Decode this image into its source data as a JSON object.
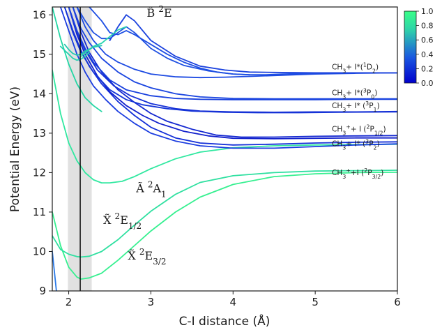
{
  "chart_data": {
    "type": "line",
    "title": "",
    "xlabel": "C-I distance (Å)",
    "ylabel": "Potential Energy (eV)",
    "xlim": [
      1.8,
      6.0
    ],
    "ylim": [
      9.0,
      16.2
    ],
    "xticks": [
      2,
      3,
      4,
      5,
      6
    ],
    "yticks": [
      9,
      10,
      11,
      12,
      13,
      14,
      15,
      16
    ],
    "grid": false,
    "colormap": {
      "range": [
        0.0,
        1.0
      ],
      "ticks": [
        "0.0",
        "0.2",
        "0.4",
        "0.6",
        "0.8",
        "1.0"
      ],
      "colors": [
        "#0000cc",
        "#1a56e0",
        "#2fd4a8",
        "#39ff88"
      ],
      "placement": "top-right"
    },
    "shaded_band": {
      "x": [
        1.99,
        2.28
      ],
      "color": "#e1e1e1"
    },
    "vertical_line": {
      "x": 2.14,
      "color": "#000000"
    },
    "asymptote_labels": [
      {
        "y": 14.53,
        "parts": [
          [
            "CH",
            ""
          ],
          [
            "3",
            "sub"
          ],
          [
            "+ I*(",
            ""
          ],
          [
            "1",
            "sup"
          ],
          [
            "D",
            ""
          ],
          [
            "2",
            "sub"
          ],
          [
            ")",
            ""
          ]
        ]
      },
      {
        "y": 13.87,
        "parts": [
          [
            "CH",
            ""
          ],
          [
            "3",
            "sub"
          ],
          [
            "+ I*(",
            ""
          ],
          [
            "3",
            "sup"
          ],
          [
            "P",
            ""
          ],
          [
            "0",
            "sub"
          ],
          [
            ")",
            ""
          ]
        ]
      },
      {
        "y": 13.55,
        "parts": [
          [
            "CH",
            ""
          ],
          [
            "3",
            "sub"
          ],
          [
            "+ I* (",
            ""
          ],
          [
            "3",
            "sup"
          ],
          [
            "P",
            ""
          ],
          [
            "1",
            "sub"
          ],
          [
            ")",
            ""
          ]
        ]
      },
      {
        "y": 12.95,
        "parts": [
          [
            "CH",
            ""
          ],
          [
            "3",
            "sub"
          ],
          [
            "+",
            "sup"
          ],
          [
            "+ I (",
            ""
          ],
          [
            "2",
            "sup"
          ],
          [
            "P",
            ""
          ],
          [
            "1/2",
            "sub"
          ],
          [
            ")",
            ""
          ]
        ]
      },
      {
        "y": 12.58,
        "parts": [
          [
            "CH",
            ""
          ],
          [
            "3",
            "sub"
          ],
          [
            "+ I* (",
            ""
          ],
          [
            "3",
            "sup"
          ],
          [
            "P",
            ""
          ],
          [
            "2",
            "sub"
          ],
          [
            ")",
            ""
          ]
        ]
      },
      {
        "y": 11.85,
        "parts": [
          [
            "CH",
            ""
          ],
          [
            "3",
            "sub"
          ],
          [
            "+",
            "sup"
          ],
          [
            "+I (",
            ""
          ],
          [
            "2",
            "sup"
          ],
          [
            "P",
            ""
          ],
          [
            "3/2",
            "sub"
          ],
          [
            ")",
            ""
          ]
        ]
      }
    ],
    "state_labels": [
      {
        "x": 2.95,
        "y": 15.95,
        "parts": [
          [
            "B̃ ",
            ""
          ],
          [
            "2",
            "sup"
          ],
          [
            "E",
            ""
          ]
        ]
      },
      {
        "x": 2.82,
        "y": 11.5,
        "parts": [
          [
            "Ã ",
            ""
          ],
          [
            "2",
            "sup"
          ],
          [
            "A",
            ""
          ],
          [
            "1",
            "sub"
          ]
        ]
      },
      {
        "x": 2.42,
        "y": 10.7,
        "parts": [
          [
            "X̃ ",
            ""
          ],
          [
            "2",
            "sup"
          ],
          [
            "E",
            ""
          ],
          [
            "1/2",
            "sub"
          ]
        ]
      },
      {
        "x": 2.72,
        "y": 9.8,
        "parts": [
          [
            "X̃ ",
            ""
          ],
          [
            "2",
            "sup"
          ],
          [
            "E",
            ""
          ],
          [
            "3/2",
            "sub"
          ]
        ]
      }
    ],
    "series": [
      {
        "color": "#36f090",
        "x": [
          1.8,
          1.9,
          2.0,
          2.1,
          2.15,
          2.25,
          2.4,
          2.6,
          2.8,
          3.0,
          3.3,
          3.6,
          4.0,
          4.5,
          5.0,
          5.5,
          6.0
        ],
        "y": [
          11.0,
          10.15,
          9.6,
          9.35,
          9.3,
          9.33,
          9.45,
          9.78,
          10.15,
          10.52,
          11.0,
          11.38,
          11.7,
          11.9,
          11.97,
          12.0,
          12.01
        ]
      },
      {
        "color": "#2ee0a0",
        "x": [
          1.8,
          1.9,
          2.0,
          2.1,
          2.15,
          2.25,
          2.4,
          2.6,
          2.8,
          3.0,
          3.3,
          3.6,
          4.0,
          4.5,
          5.0,
          5.5,
          6.0
        ],
        "y": [
          10.4,
          10.05,
          9.93,
          9.87,
          9.86,
          9.88,
          10.0,
          10.3,
          10.67,
          11.02,
          11.45,
          11.75,
          11.92,
          12.0,
          12.04,
          12.05,
          12.06
        ]
      },
      {
        "color": "#30e8a0",
        "x": [
          1.8,
          1.9,
          2.0,
          2.1,
          2.2,
          2.3,
          2.4,
          2.5,
          2.65,
          2.8,
          3.0,
          3.3,
          3.6,
          4.0,
          4.5,
          5.0,
          5.5,
          6.0
        ],
        "y": [
          14.6,
          13.5,
          12.75,
          12.3,
          12.0,
          11.82,
          11.74,
          11.74,
          11.78,
          11.9,
          12.1,
          12.35,
          12.52,
          12.63,
          12.68,
          12.7,
          12.71,
          12.72
        ]
      },
      {
        "color": "#22d6a4",
        "x": [
          1.8,
          1.9,
          2.0,
          2.1,
          2.2,
          2.3,
          2.4
        ],
        "y": [
          16.2,
          15.4,
          14.75,
          14.25,
          13.9,
          13.7,
          13.55
        ]
      },
      {
        "color": "#2a7ae8",
        "x": [
          1.8,
          1.85
        ],
        "y": [
          10.0,
          9.0
        ]
      },
      {
        "color": "#1a3ce0",
        "x": [
          1.9,
          2.0,
          2.1,
          2.2,
          2.3,
          2.45,
          2.6,
          2.8,
          3.0,
          3.3,
          3.6,
          4.0,
          4.5,
          5.0,
          5.5,
          6.0
        ],
        "y": [
          16.2,
          15.6,
          15.0,
          14.55,
          14.2,
          13.85,
          13.55,
          13.25,
          13.0,
          12.8,
          12.68,
          12.62,
          12.62,
          12.66,
          12.7,
          12.73
        ]
      },
      {
        "color": "#1530d8",
        "x": [
          1.95,
          2.05,
          2.15,
          2.25,
          2.4,
          2.6,
          2.8,
          3.0,
          3.3,
          3.6,
          4.0,
          4.5,
          5.0,
          5.5,
          6.0
        ],
        "y": [
          16.2,
          15.6,
          15.1,
          14.7,
          14.25,
          13.8,
          13.45,
          13.15,
          12.88,
          12.75,
          12.7,
          12.72,
          12.75,
          12.77,
          12.78
        ]
      },
      {
        "color": "#1220cc",
        "x": [
          2.0,
          2.1,
          2.2,
          2.35,
          2.5,
          2.7,
          2.9,
          3.1,
          3.4,
          3.7,
          4.0,
          4.5,
          5.0,
          5.5,
          6.0
        ],
        "y": [
          16.2,
          15.5,
          15.0,
          14.45,
          14.05,
          13.7,
          13.45,
          13.25,
          13.05,
          12.93,
          12.87,
          12.86,
          12.87,
          12.88,
          12.88
        ]
      },
      {
        "color": "#1428d0",
        "x": [
          2.05,
          2.15,
          2.25,
          2.4,
          2.6,
          2.8,
          3.0,
          3.2,
          3.5,
          3.8,
          4.1,
          4.5,
          5.0,
          5.5,
          6.0
        ],
        "y": [
          16.2,
          15.55,
          15.05,
          14.55,
          14.1,
          13.78,
          13.5,
          13.3,
          13.1,
          12.95,
          12.9,
          12.9,
          12.92,
          12.93,
          12.94
        ]
      },
      {
        "color": "#1535d8",
        "x": [
          1.95,
          2.05,
          2.15,
          2.3,
          2.5,
          2.7,
          2.9,
          3.2,
          3.5,
          3.9,
          4.3,
          4.8,
          5.3,
          6.0
        ],
        "y": [
          16.2,
          15.55,
          15.05,
          14.55,
          14.1,
          13.85,
          13.72,
          13.62,
          13.56,
          13.53,
          13.52,
          13.52,
          13.53,
          13.54
        ]
      },
      {
        "color": "#1630d6",
        "x": [
          2.0,
          2.1,
          2.2,
          2.35,
          2.55,
          2.75,
          3.0,
          3.3,
          3.6,
          4.0,
          4.5,
          5.0,
          5.5,
          6.0
        ],
        "y": [
          16.2,
          15.55,
          15.1,
          14.6,
          14.2,
          13.95,
          13.75,
          13.62,
          13.56,
          13.54,
          13.53,
          13.54,
          13.54,
          13.55
        ]
      },
      {
        "color": "#1840de",
        "x": [
          2.0,
          2.1,
          2.2,
          2.3,
          2.5,
          2.7,
          3.0,
          3.3,
          3.6,
          4.0,
          4.5,
          5.0,
          5.5,
          6.0
        ],
        "y": [
          16.2,
          15.6,
          15.15,
          14.8,
          14.35,
          14.1,
          13.95,
          13.88,
          13.86,
          13.85,
          13.85,
          13.85,
          13.86,
          13.86
        ]
      },
      {
        "color": "#1a45e0",
        "x": [
          2.05,
          2.15,
          2.25,
          2.4,
          2.6,
          2.8,
          3.0,
          3.3,
          3.6,
          4.0,
          4.5,
          5.0,
          5.5,
          6.0
        ],
        "y": [
          16.2,
          15.65,
          15.3,
          14.9,
          14.55,
          14.3,
          14.15,
          14.0,
          13.92,
          13.88,
          13.87,
          13.87,
          13.87,
          13.87
        ]
      },
      {
        "color": "#1c4ae2",
        "x": [
          2.1,
          2.2,
          2.3,
          2.45,
          2.6,
          2.8,
          3.0,
          3.3,
          3.6,
          3.9,
          4.2,
          4.6,
          5.0,
          5.5,
          6.0
        ],
        "y": [
          16.2,
          15.7,
          15.35,
          15.0,
          14.8,
          14.62,
          14.5,
          14.43,
          14.41,
          14.42,
          14.44,
          14.47,
          14.5,
          14.52,
          14.53
        ]
      },
      {
        "color": "#1d4ee4",
        "x": [
          2.25,
          2.4,
          2.5,
          2.6,
          2.7,
          2.8,
          3.0,
          3.2,
          3.4,
          3.6,
          3.8,
          4.0,
          4.2,
          4.4,
          4.6,
          5.0,
          5.5,
          6.0
        ],
        "y": [
          16.2,
          15.85,
          15.55,
          15.5,
          15.6,
          15.5,
          15.25,
          15.0,
          14.8,
          14.65,
          14.55,
          14.5,
          14.48,
          14.48,
          14.5,
          14.52,
          14.53,
          14.53
        ]
      },
      {
        "color": "#1b42de",
        "x": [
          2.5,
          2.6,
          2.7,
          2.8,
          3.0,
          3.3,
          3.6,
          3.9,
          4.2,
          4.5,
          5.0,
          5.5,
          6.0
        ],
        "y": [
          15.35,
          15.7,
          16.0,
          15.85,
          15.35,
          14.95,
          14.7,
          14.6,
          14.55,
          14.54,
          14.53,
          14.53,
          14.53
        ]
      },
      {
        "color": "#1f50e2",
        "x": [
          2.1,
          2.2,
          2.3,
          2.4,
          2.5,
          2.6,
          2.7,
          2.8,
          2.9,
          3.0,
          3.2,
          3.4,
          3.7,
          4.0,
          4.2
        ],
        "y": [
          16.2,
          15.85,
          15.55,
          15.4,
          15.4,
          15.55,
          15.7,
          15.55,
          15.35,
          15.15,
          14.9,
          14.72,
          14.58,
          14.5,
          14.48
        ]
      },
      {
        "color": "#2ad6b0",
        "x": [
          2.15,
          2.3,
          2.4,
          2.5,
          2.6,
          2.7
        ],
        "y": [
          14.95,
          15.2,
          15.28,
          15.45,
          15.62,
          15.7
        ]
      },
      {
        "color": "#28d0b0",
        "x": [
          1.9,
          2.0,
          2.05,
          2.1,
          2.15,
          2.2,
          2.25
        ],
        "y": [
          15.2,
          15.0,
          14.9,
          14.85,
          14.88,
          14.95,
          15.05
        ]
      },
      {
        "color": "#26c8b0",
        "x": [
          1.95,
          2.0,
          2.05,
          2.1,
          2.15,
          2.2,
          2.3,
          2.4
        ],
        "y": [
          15.25,
          15.12,
          15.02,
          14.98,
          15.0,
          15.08,
          15.18,
          15.22
        ]
      }
    ]
  }
}
